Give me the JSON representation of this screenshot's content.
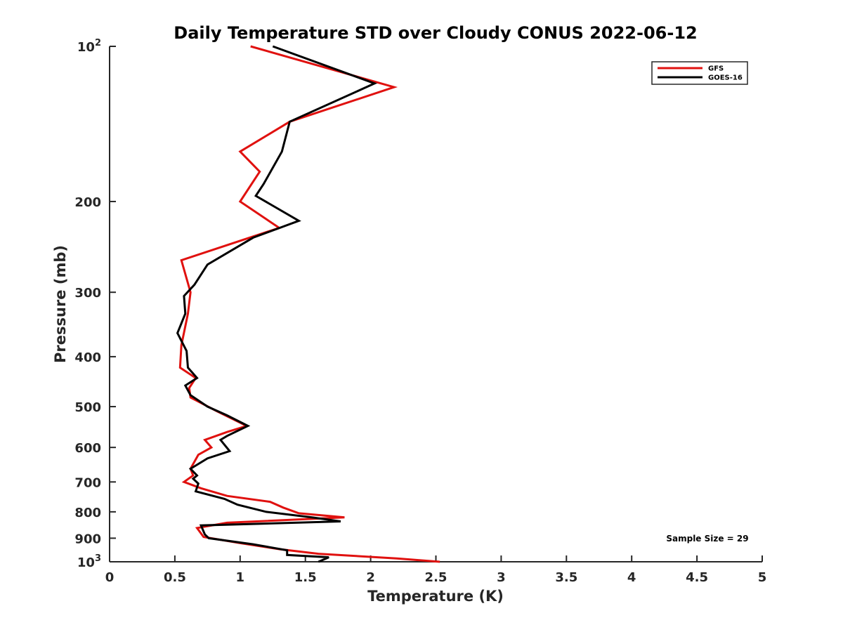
{
  "chart_data": {
    "type": "line",
    "title": "Daily Temperature STD over Cloudy CONUS 2022-06-12",
    "xlabel": "Temperature (K)",
    "ylabel": "Pressure (mb)",
    "xlim": [
      0,
      5
    ],
    "ylim": [
      100,
      1000
    ],
    "yscale": "log",
    "y_reversed": true,
    "x_ticks": [
      "0",
      "0.5",
      "1",
      "1.5",
      "2",
      "2.5",
      "3",
      "3.5",
      "4",
      "4.5",
      "5"
    ],
    "y_ticks": [
      {
        "value": 100,
        "label": "10",
        "sup": "2"
      },
      {
        "value": 200,
        "label": "200",
        "sup": ""
      },
      {
        "value": 300,
        "label": "300",
        "sup": ""
      },
      {
        "value": 400,
        "label": "400",
        "sup": ""
      },
      {
        "value": 500,
        "label": "500",
        "sup": ""
      },
      {
        "value": 600,
        "label": "600",
        "sup": ""
      },
      {
        "value": 700,
        "label": "700",
        "sup": ""
      },
      {
        "value": 800,
        "label": "800",
        "sup": ""
      },
      {
        "value": 900,
        "label": "900",
        "sup": ""
      },
      {
        "value": 1000,
        "label": "10",
        "sup": "3"
      }
    ],
    "grid": false,
    "legend_position": "top-right",
    "series": [
      {
        "name": "GFS",
        "color": "#e0110f",
        "points": [
          [
            1.08,
            100
          ],
          [
            2.18,
            120
          ],
          [
            1.38,
            140
          ],
          [
            1.0,
            160
          ],
          [
            1.15,
            175
          ],
          [
            1.0,
            200
          ],
          [
            1.3,
            225
          ],
          [
            0.55,
            260
          ],
          [
            0.62,
            300
          ],
          [
            0.6,
            330
          ],
          [
            0.55,
            380
          ],
          [
            0.54,
            420
          ],
          [
            0.66,
            440
          ],
          [
            0.61,
            460
          ],
          [
            0.62,
            480
          ],
          [
            0.82,
            510
          ],
          [
            1.05,
            545
          ],
          [
            0.9,
            560
          ],
          [
            0.73,
            580
          ],
          [
            0.78,
            600
          ],
          [
            0.68,
            620
          ],
          [
            0.62,
            660
          ],
          [
            0.64,
            680
          ],
          [
            0.57,
            700
          ],
          [
            0.7,
            720
          ],
          [
            0.9,
            745
          ],
          [
            1.23,
            765
          ],
          [
            1.33,
            785
          ],
          [
            1.45,
            805
          ],
          [
            1.8,
            820
          ],
          [
            0.9,
            840
          ],
          [
            0.67,
            860
          ],
          [
            0.72,
            895
          ],
          [
            1.0,
            920
          ],
          [
            1.3,
            945
          ],
          [
            1.6,
            965
          ],
          [
            2.2,
            985
          ],
          [
            2.53,
            1000
          ]
        ]
      },
      {
        "name": "GOES-16",
        "color": "#000000",
        "points": [
          [
            1.25,
            100
          ],
          [
            2.03,
            118
          ],
          [
            1.38,
            140
          ],
          [
            1.32,
            160
          ],
          [
            1.18,
            185
          ],
          [
            1.12,
            195
          ],
          [
            1.45,
            218
          ],
          [
            1.1,
            235
          ],
          [
            0.75,
            265
          ],
          [
            0.65,
            290
          ],
          [
            0.57,
            305
          ],
          [
            0.58,
            330
          ],
          [
            0.52,
            360
          ],
          [
            0.59,
            390
          ],
          [
            0.6,
            420
          ],
          [
            0.67,
            440
          ],
          [
            0.58,
            455
          ],
          [
            0.62,
            475
          ],
          [
            0.75,
            500
          ],
          [
            0.9,
            520
          ],
          [
            1.06,
            545
          ],
          [
            0.9,
            570
          ],
          [
            0.85,
            580
          ],
          [
            0.92,
            610
          ],
          [
            0.75,
            630
          ],
          [
            0.62,
            660
          ],
          [
            0.67,
            680
          ],
          [
            0.64,
            690
          ],
          [
            0.68,
            705
          ],
          [
            0.66,
            730
          ],
          [
            0.88,
            755
          ],
          [
            0.98,
            775
          ],
          [
            1.2,
            800
          ],
          [
            1.55,
            820
          ],
          [
            1.77,
            835
          ],
          [
            0.7,
            850
          ],
          [
            0.73,
            885
          ],
          [
            0.76,
            900
          ],
          [
            1.1,
            925
          ],
          [
            1.36,
            950
          ],
          [
            1.36,
            970
          ],
          [
            1.68,
            980
          ],
          [
            1.6,
            1000
          ]
        ]
      }
    ],
    "annotations": [
      "Sample Size = 29"
    ]
  }
}
